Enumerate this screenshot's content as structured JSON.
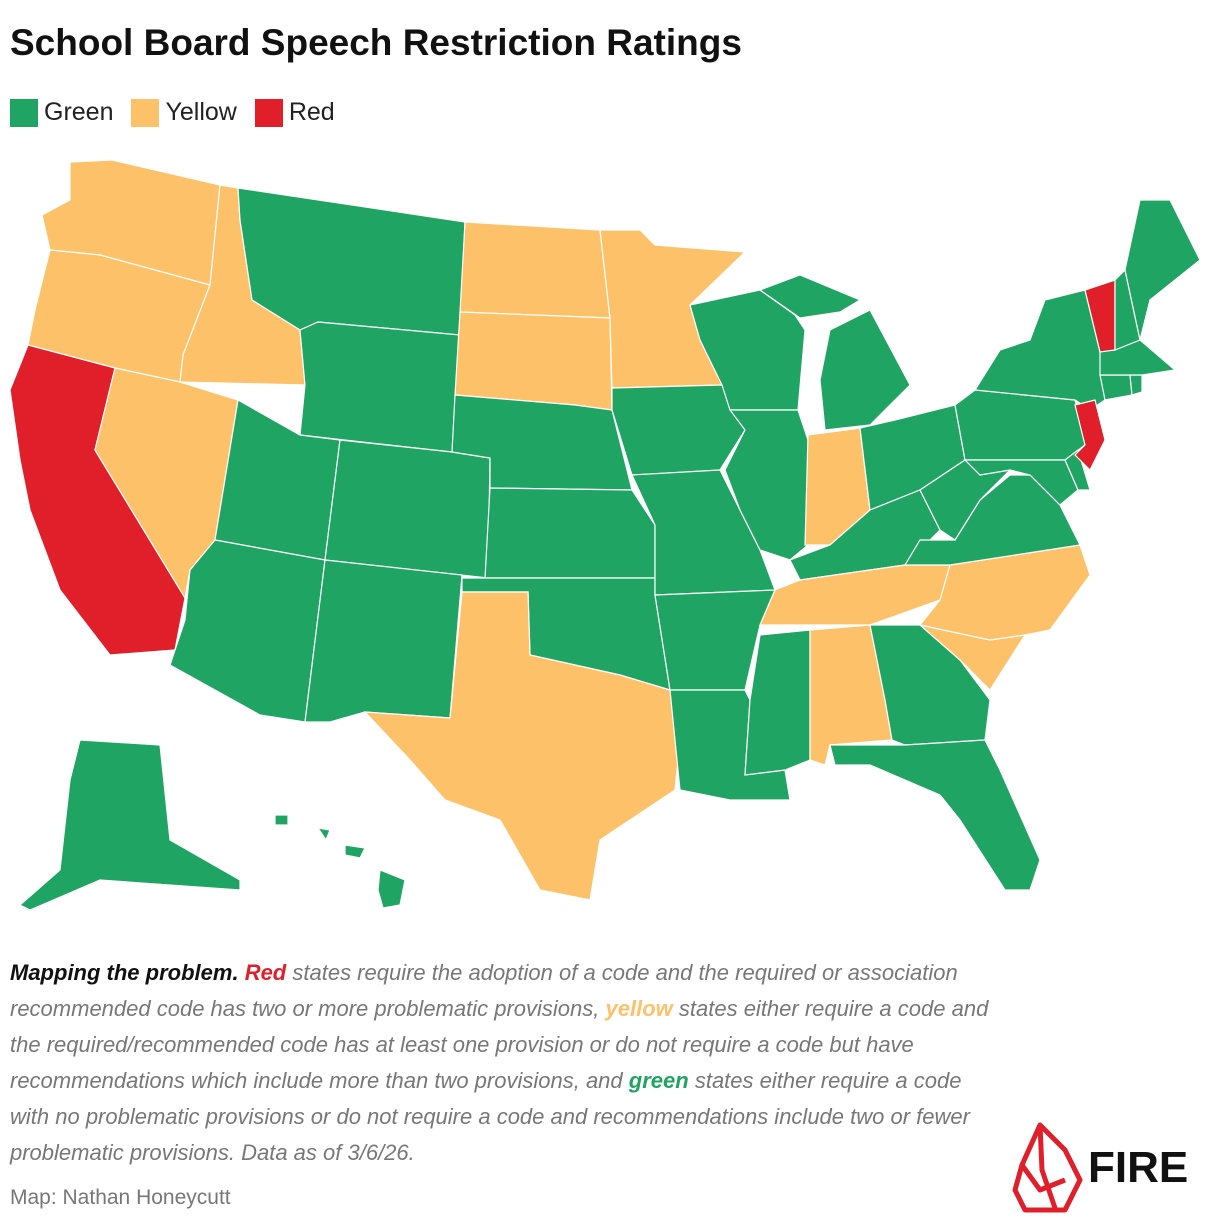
{
  "title": "School Board Speech Restriction Ratings",
  "legend": [
    {
      "label": "Green",
      "color": "#1fa463"
    },
    {
      "label": "Yellow",
      "color": "#fdc169"
    },
    {
      "label": "Red",
      "color": "#e01f2a"
    }
  ],
  "states": [
    {
      "state": "WA",
      "rating": "Yellow"
    },
    {
      "state": "OR",
      "rating": "Yellow"
    },
    {
      "state": "CA",
      "rating": "Red"
    },
    {
      "state": "ID",
      "rating": "Yellow"
    },
    {
      "state": "NV",
      "rating": "Yellow"
    },
    {
      "state": "MT",
      "rating": "Green"
    },
    {
      "state": "WY",
      "rating": "Green"
    },
    {
      "state": "UT",
      "rating": "Green"
    },
    {
      "state": "AZ",
      "rating": "Green"
    },
    {
      "state": "CO",
      "rating": "Green"
    },
    {
      "state": "NM",
      "rating": "Green"
    },
    {
      "state": "ND",
      "rating": "Yellow"
    },
    {
      "state": "SD",
      "rating": "Yellow"
    },
    {
      "state": "NE",
      "rating": "Green"
    },
    {
      "state": "KS",
      "rating": "Green"
    },
    {
      "state": "OK",
      "rating": "Green"
    },
    {
      "state": "TX",
      "rating": "Yellow"
    },
    {
      "state": "MN",
      "rating": "Yellow"
    },
    {
      "state": "IA",
      "rating": "Green"
    },
    {
      "state": "MO",
      "rating": "Green"
    },
    {
      "state": "AR",
      "rating": "Green"
    },
    {
      "state": "LA",
      "rating": "Green"
    },
    {
      "state": "WI",
      "rating": "Green"
    },
    {
      "state": "IL",
      "rating": "Green"
    },
    {
      "state": "MI",
      "rating": "Green"
    },
    {
      "state": "IN",
      "rating": "Yellow"
    },
    {
      "state": "OH",
      "rating": "Green"
    },
    {
      "state": "KY",
      "rating": "Green"
    },
    {
      "state": "TN",
      "rating": "Yellow"
    },
    {
      "state": "MS",
      "rating": "Green"
    },
    {
      "state": "AL",
      "rating": "Yellow"
    },
    {
      "state": "GA",
      "rating": "Green"
    },
    {
      "state": "FL",
      "rating": "Green"
    },
    {
      "state": "SC",
      "rating": "Yellow"
    },
    {
      "state": "NC",
      "rating": "Yellow"
    },
    {
      "state": "VA",
      "rating": "Green"
    },
    {
      "state": "WV",
      "rating": "Green"
    },
    {
      "state": "PA",
      "rating": "Green"
    },
    {
      "state": "NY",
      "rating": "Green"
    },
    {
      "state": "MD",
      "rating": "Green"
    },
    {
      "state": "DE",
      "rating": "Green"
    },
    {
      "state": "NJ",
      "rating": "Red"
    },
    {
      "state": "CT",
      "rating": "Green"
    },
    {
      "state": "RI",
      "rating": "Green"
    },
    {
      "state": "MA",
      "rating": "Green"
    },
    {
      "state": "VT",
      "rating": "Red"
    },
    {
      "state": "NH",
      "rating": "Green"
    },
    {
      "state": "ME",
      "rating": "Green"
    },
    {
      "state": "AK",
      "rating": "Green"
    },
    {
      "state": "HI",
      "rating": "Green"
    }
  ],
  "caption": {
    "lead": "Mapping the problem.",
    "red": "Red",
    "red_text": "states require the adoption of a code and the required or association recommended code has two or more problematic provisions,",
    "yellow": "yellow",
    "yellow_text": "states either require a code and the required/recommended code has at least one provision or do not require a code but have recommendations which include more than two provisions, and",
    "green": "green",
    "green_text": "states either require a code with no problematic provisions or do not require a code and recommendations include two or fewer problematic provisions. Data as of 3/6/26."
  },
  "credit": "Map: Nathan Honeycutt",
  "logo": "FIRE"
}
